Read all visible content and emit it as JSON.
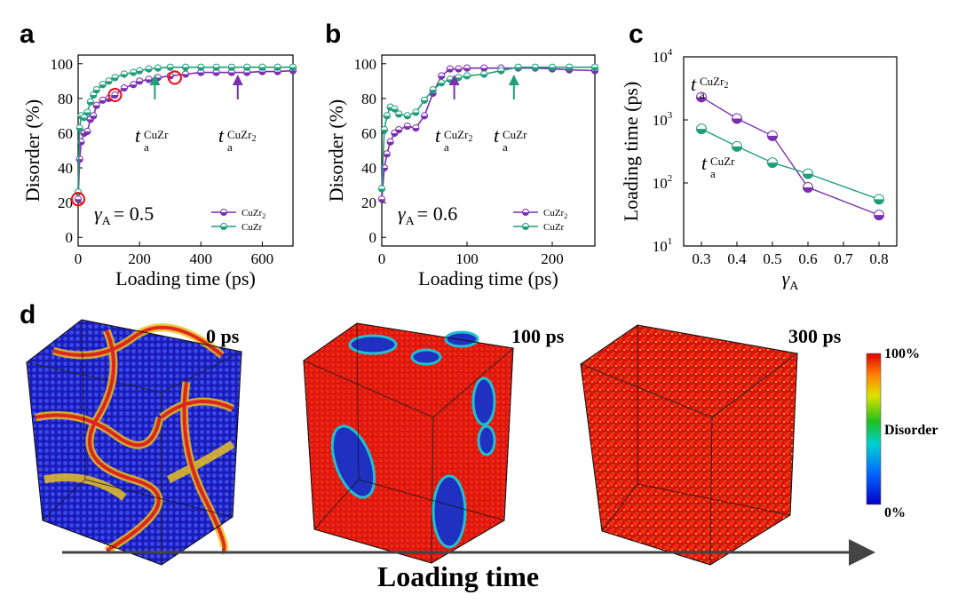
{
  "colors": {
    "cuzr2": "#7b2fb0",
    "cuzr": "#1f9e7a",
    "red_circle": "#e8181e",
    "arrow_dark": "#444444"
  },
  "panels": {
    "a": {
      "letter": "a",
      "gamma_label": "= 0.5",
      "gamma_symbol": "γ",
      "gamma_sub": "A",
      "annotation1": "t",
      "annotation1_sup": "CuZr",
      "annotation1_sub": "a",
      "annotation2": "t",
      "annotation2_sup": "CuZr",
      "annotation2_sup_sub": "2",
      "annotation2_sub": "a"
    },
    "b": {
      "letter": "b",
      "gamma_label": "= 0.6",
      "gamma_symbol": "γ",
      "gamma_sub": "A",
      "annotation1": "t",
      "annotation1_sup": "CuZr",
      "annotation1_sup_sub": "2",
      "annotation1_sub": "a",
      "annotation2": "t",
      "annotation2_sup": "CuZr",
      "annotation2_sub": "a"
    },
    "c": {
      "letter": "c",
      "annotation1": "t",
      "annotation1_sup": "CuZr",
      "annotation1_sup_sub": "2",
      "annotation1_sub": "a",
      "annotation2": "t",
      "annotation2_sup": "CuZr",
      "annotation2_sub": "a"
    },
    "d": {
      "letter": "d",
      "labels": [
        "0 ps",
        "100 ps",
        "300 ps"
      ],
      "colorbar": {
        "top": "100%",
        "mid": "Disorder",
        "bottom": "0%"
      },
      "bottom_label": "Loading time"
    }
  },
  "chart_data": [
    {
      "type": "line",
      "panel": "a",
      "xlabel": "Loading time (ps)",
      "ylabel": "Disorder (%)",
      "xlim": [
        0,
        700
      ],
      "ylim": [
        -5,
        105
      ],
      "xticks": [
        0,
        200,
        400,
        600
      ],
      "yticks": [
        0,
        20,
        40,
        60,
        80,
        100
      ],
      "legend": {
        "position": "bottom-right",
        "entries": [
          "CuZr2",
          "CuZr"
        ],
        "entry_labels": [
          {
            "base": "CuZr",
            "sub": "2"
          },
          {
            "base": "CuZr",
            "sub": ""
          }
        ]
      },
      "series": [
        {
          "name": "CuZr2",
          "color": "#7b2fb0",
          "x": [
            0,
            5,
            10,
            20,
            30,
            40,
            50,
            60,
            80,
            100,
            120,
            150,
            180,
            200,
            230,
            260,
            300,
            350,
            400,
            450,
            500,
            550,
            600,
            650,
            700
          ],
          "y": [
            22,
            45,
            55,
            60,
            61,
            68,
            70,
            76,
            79,
            80,
            82,
            86,
            88,
            90,
            91,
            92,
            93,
            94,
            95,
            95,
            95,
            95,
            95.5,
            95.5,
            96
          ]
        },
        {
          "name": "CuZr",
          "color": "#1f9e7a",
          "x": [
            0,
            5,
            10,
            20,
            30,
            40,
            50,
            60,
            80,
            100,
            120,
            150,
            180,
            200,
            230,
            260,
            300,
            350,
            400,
            450,
            500,
            550,
            600,
            650,
            700
          ],
          "y": [
            26,
            63,
            70,
            69,
            72,
            78,
            82,
            85,
            88,
            90,
            92,
            94,
            95,
            96,
            97,
            97.5,
            98,
            98,
            98,
            98,
            98,
            98,
            98,
            98,
            98
          ]
        }
      ],
      "annotations": [
        {
          "label": "t_a^CuZr",
          "arrow_x": 250,
          "color": "#1f9e7a"
        },
        {
          "label": "t_a^CuZr2",
          "arrow_x": 520,
          "color": "#7b2fb0"
        },
        {
          "circles_at": [
            [
              0,
              22
            ],
            [
              120,
              82
            ],
            [
              315,
              92
            ]
          ],
          "color": "#e8181e"
        }
      ]
    },
    {
      "type": "line",
      "panel": "b",
      "xlabel": "Loading time (ps)",
      "ylabel": "Disorder (%)",
      "xlim": [
        0,
        250
      ],
      "ylim": [
        -5,
        105
      ],
      "xticks": [
        0,
        100,
        200
      ],
      "yticks": [
        0,
        20,
        40,
        60,
        80,
        100
      ],
      "legend": {
        "position": "bottom-right",
        "entries": [
          "CuZr2",
          "CuZr"
        ],
        "entry_labels": [
          {
            "base": "CuZr",
            "sub": "2"
          },
          {
            "base": "CuZr",
            "sub": ""
          }
        ]
      },
      "series": [
        {
          "name": "CuZr2",
          "color": "#7b2fb0",
          "x": [
            0,
            3,
            6,
            10,
            15,
            20,
            30,
            40,
            50,
            60,
            70,
            80,
            90,
            100,
            120,
            140,
            160,
            180,
            200,
            220,
            250
          ],
          "y": [
            22,
            40,
            48,
            55,
            60,
            62,
            64,
            63,
            70,
            83,
            93,
            97,
            97,
            97.5,
            97.5,
            97.5,
            97.5,
            97.5,
            97,
            96.5,
            96
          ]
        },
        {
          "name": "CuZr",
          "color": "#1f9e7a",
          "x": [
            0,
            3,
            6,
            10,
            15,
            20,
            30,
            40,
            50,
            60,
            70,
            80,
            90,
            100,
            120,
            140,
            160,
            180,
            200,
            220,
            250
          ],
          "y": [
            28,
            62,
            70,
            75,
            74,
            71,
            70,
            72,
            79,
            85,
            89,
            91,
            92,
            93,
            94,
            96,
            98,
            98,
            98,
            98,
            98
          ]
        }
      ],
      "annotations": [
        {
          "label": "t_a^CuZr2",
          "arrow_x": 85,
          "color": "#7b2fb0"
        },
        {
          "label": "t_a^CuZr",
          "arrow_x": 155,
          "color": "#1f9e7a"
        }
      ]
    },
    {
      "type": "line",
      "panel": "c",
      "xlabel": "γA",
      "ylabel": "Loading time (ps)",
      "yscale": "log",
      "xlim": [
        0.25,
        0.85
      ],
      "ylim": [
        10,
        10000
      ],
      "xticks": [
        0.3,
        0.4,
        0.5,
        0.6,
        0.7,
        0.8
      ],
      "yticks": [
        {
          "base": "10",
          "exp": "1"
        },
        {
          "base": "10",
          "exp": "2"
        },
        {
          "base": "10",
          "exp": "3"
        },
        {
          "base": "10",
          "exp": "4"
        }
      ],
      "series": [
        {
          "name": "CuZr2",
          "color": "#7b2fb0",
          "x": [
            0.3,
            0.4,
            0.5,
            0.6,
            0.8
          ],
          "y": [
            2300,
            1050,
            560,
            85,
            31
          ]
        },
        {
          "name": "CuZr",
          "color": "#1f9e7a",
          "x": [
            0.3,
            0.4,
            0.5,
            0.6,
            0.8
          ],
          "y": [
            720,
            380,
            210,
            140,
            55
          ]
        }
      ]
    }
  ]
}
